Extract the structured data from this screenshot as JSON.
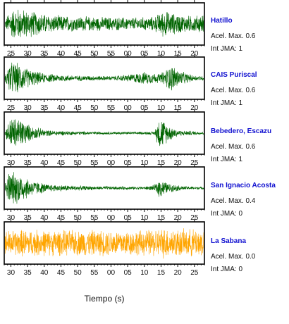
{
  "chart_data": {
    "type": "line",
    "xlabel": "Tiempo (s)",
    "panels": [
      {
        "station": "Hatillo",
        "accel_label": "Acel. Max. 0.6",
        "jma_label": "Int JMA: 1",
        "color": "#006400",
        "tick_labels": [
          "25",
          "30",
          "35",
          "40",
          "45",
          "50",
          "55",
          "00",
          "05",
          "10",
          "15",
          "20"
        ],
        "x_start": 23.0,
        "envelope": [
          [
            0,
            0.15
          ],
          [
            0.02,
            0.7
          ],
          [
            0.06,
            0.9
          ],
          [
            0.12,
            0.75
          ],
          [
            0.22,
            0.5
          ],
          [
            0.35,
            0.42
          ],
          [
            0.5,
            0.38
          ],
          [
            0.65,
            0.35
          ],
          [
            0.75,
            0.4
          ],
          [
            0.8,
            0.75
          ],
          [
            0.86,
            0.55
          ],
          [
            0.93,
            0.45
          ],
          [
            1,
            0.5
          ]
        ]
      },
      {
        "station": "CAIS Puriscal",
        "accel_label": "Acel. Max. 0.6",
        "jma_label": "Int JMA: 1",
        "color": "#006400",
        "tick_labels": [
          "25",
          "30",
          "35",
          "40",
          "45",
          "50",
          "55",
          "00",
          "05",
          "10",
          "15",
          "20"
        ],
        "x_start": 23.0,
        "envelope": [
          [
            0,
            0.1
          ],
          [
            0.02,
            0.9
          ],
          [
            0.06,
            0.85
          ],
          [
            0.12,
            0.5
          ],
          [
            0.2,
            0.25
          ],
          [
            0.35,
            0.15
          ],
          [
            0.55,
            0.12
          ],
          [
            0.62,
            0.2
          ],
          [
            0.7,
            0.35
          ],
          [
            0.78,
            0.25
          ],
          [
            0.84,
            0.75
          ],
          [
            0.88,
            0.4
          ],
          [
            0.95,
            0.15
          ],
          [
            1,
            0.12
          ]
        ]
      },
      {
        "station": "Bebedero, Escazu",
        "accel_label": "Acel. Max. 0.6",
        "jma_label": "Int JMA: 1",
        "color": "#006400",
        "tick_labels": [
          "30",
          "35",
          "40",
          "45",
          "50",
          "55",
          "00",
          "05",
          "10",
          "15",
          "20",
          "25"
        ],
        "x_start": 28.0,
        "envelope": [
          [
            0,
            0.15
          ],
          [
            0.03,
            0.9
          ],
          [
            0.08,
            0.8
          ],
          [
            0.13,
            0.4
          ],
          [
            0.22,
            0.15
          ],
          [
            0.45,
            0.08
          ],
          [
            0.65,
            0.07
          ],
          [
            0.75,
            0.08
          ],
          [
            0.78,
            0.95
          ],
          [
            0.82,
            0.45
          ],
          [
            0.88,
            0.15
          ],
          [
            1,
            0.08
          ]
        ]
      },
      {
        "station": "San Ignacio Acosta",
        "accel_label": "Acel. Max. 0.4",
        "jma_label": "Int JMA: 0",
        "color": "#006400",
        "tick_labels": [
          "30",
          "35",
          "40",
          "45",
          "50",
          "55",
          "00",
          "05",
          "10",
          "15",
          "20",
          "25"
        ],
        "x_start": 28.0,
        "envelope": [
          [
            0,
            0.2
          ],
          [
            0.02,
            0.95
          ],
          [
            0.07,
            0.85
          ],
          [
            0.13,
            0.45
          ],
          [
            0.22,
            0.2
          ],
          [
            0.45,
            0.1
          ],
          [
            0.7,
            0.08
          ],
          [
            0.75,
            0.15
          ],
          [
            0.78,
            0.55
          ],
          [
            0.82,
            0.25
          ],
          [
            0.9,
            0.1
          ],
          [
            1,
            0.07
          ]
        ]
      },
      {
        "station": "La Sabana",
        "accel_label": "Acel. Max. 0.0",
        "jma_label": "Int JMA: 0",
        "color": "#ffa500",
        "tick_labels": [
          "30",
          "35",
          "40",
          "45",
          "50",
          "55",
          "00",
          "05",
          "10",
          "15",
          "20",
          "25"
        ],
        "x_start": 28.0,
        "envelope": [
          [
            0,
            0.7
          ],
          [
            0.1,
            0.75
          ],
          [
            0.3,
            0.7
          ],
          [
            0.5,
            0.72
          ],
          [
            0.7,
            0.7
          ],
          [
            0.8,
            0.85
          ],
          [
            0.9,
            0.75
          ],
          [
            1,
            0.8
          ]
        ]
      }
    ]
  }
}
